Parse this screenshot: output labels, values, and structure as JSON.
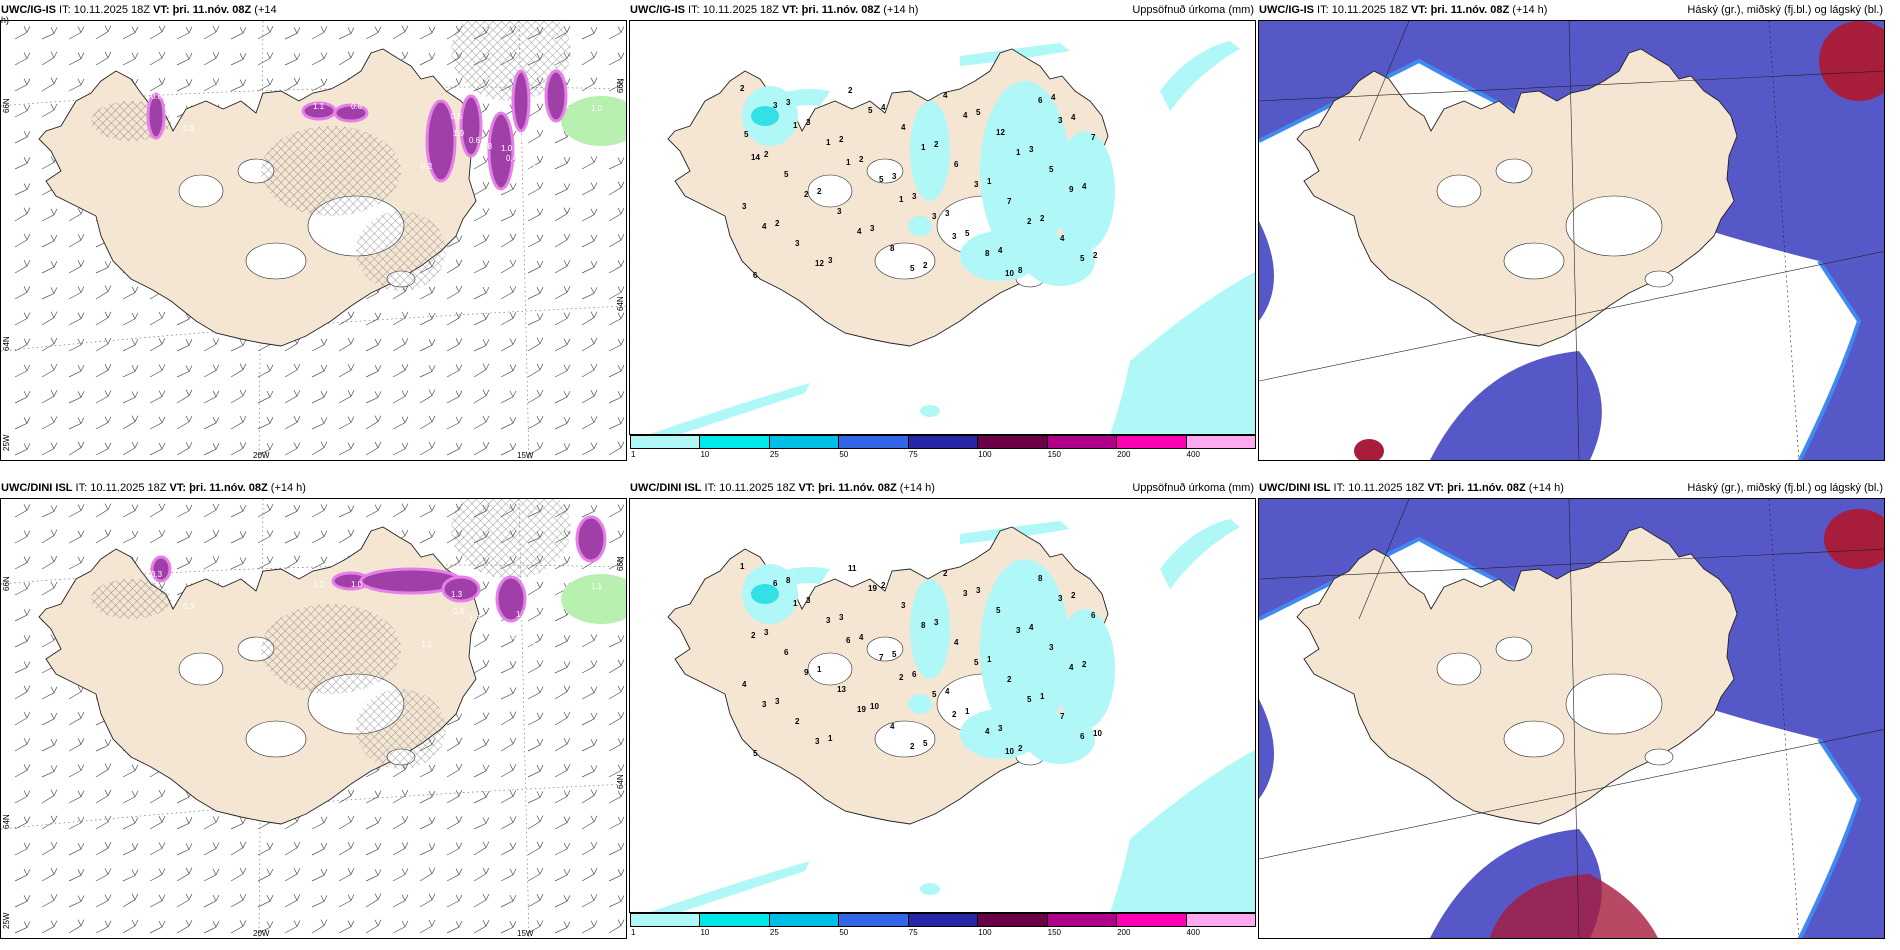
{
  "rows": [
    {
      "model": "UWC/IG-IS",
      "wind": {
        "model": "UWC/IG-IS",
        "it": " IT: 10.11.2025 18Z ",
        "vt": "VT: þri. 11.nóv. 08Z",
        "lead": " (+14",
        "lead2": "h)"
      },
      "precip": {
        "model": "UWC/IG-IS",
        "it": " IT: 10.11.2025 18Z ",
        "vt": "VT: þri. 11.nóv. 08Z",
        "lead": " (+14 h)",
        "right": "Uppsöfnuð úrkoma (mm)"
      },
      "cloud": {
        "model": "UWC/IG-IS",
        "it": " IT: 10.11.2025 18Z ",
        "vt": "VT: þri. 11.nóv. 08Z",
        "lead": " (+14 h)",
        "right": "Háský (gr.), miðský (fj.bl.) og lágský (bl.)"
      },
      "precip_values": [
        "2",
        "1",
        "1",
        "1",
        "3",
        "10",
        "3",
        "14",
        "2",
        "4",
        "5",
        "4",
        "1",
        "9",
        "4",
        "12",
        "5",
        "1",
        "3",
        "2",
        "5",
        "3",
        "1",
        "5",
        "3",
        "8",
        "6",
        "7",
        "5",
        "3",
        "8",
        "4",
        "12",
        "5",
        "3",
        "3",
        "2",
        "4",
        "6",
        "7",
        "4",
        "6",
        "3",
        "2",
        "3",
        "5",
        "8",
        "4",
        "2",
        "2",
        "3",
        "2",
        "5",
        "3",
        "4",
        "2",
        "3",
        "4",
        "2",
        "1",
        "2",
        "2",
        "3",
        "2",
        "3",
        "3",
        "4",
        "4",
        "5"
      ],
      "wind_labels": [
        "0.8",
        "0.8",
        "1.1",
        "0.6",
        "0.5",
        "1.9",
        "0.6",
        "0.8",
        "1.0",
        "0.6",
        "0.2",
        "0.4",
        "0.3",
        "0.5",
        "1.0"
      ]
    },
    {
      "model": "UWC/DINI ISL",
      "wind": {
        "model": "UWC/DINI ISL",
        "it": " IT: 10.11.2025 18Z ",
        "vt": "VT: þri. 11.nóv. 08Z",
        "lead": " (+14 h)",
        "lead2": ""
      },
      "precip": {
        "model": "UWC/DINI ISL",
        "it": " IT: 10.11.2025 18Z ",
        "vt": "VT: þri. 11.nóv. 08Z",
        "lead": " (+14 h)",
        "right": "Uppsöfnuð úrkoma (mm)"
      },
      "cloud": {
        "model": "UWC/DINI ISL",
        "it": " IT: 10.11.2025 18Z ",
        "vt": "VT: þri. 11.nóv. 08Z",
        "lead": " (+14 h)",
        "right": "Háský (gr.), miðský (fj.bl.) og lágský (bl.)"
      },
      "precip_values": [
        "1",
        "1",
        "6",
        "2",
        "2",
        "10",
        "3",
        "2",
        "9",
        "19",
        "2",
        "3",
        "3",
        "4",
        "3",
        "3",
        "19",
        "8",
        "5",
        "5",
        "6",
        "6",
        "3",
        "7",
        "5",
        "4",
        "8",
        "6",
        "6",
        "13",
        "4",
        "2",
        "5",
        "3",
        "4",
        "2",
        "11",
        "3",
        "4",
        "2",
        "7",
        "5",
        "3",
        "4",
        "6",
        "1",
        "2",
        "2",
        "3",
        "1",
        "10",
        "5",
        "3",
        "4",
        "2",
        "3",
        "1",
        "2",
        "3",
        "1",
        "1",
        "10",
        "8",
        "3",
        "5",
        "4",
        "3"
      ],
      "wind_labels": [
        "0.3",
        "0.3",
        "1.2",
        "1.0",
        "1.3",
        "0.8",
        "1.6",
        "1.7",
        "1.0",
        "1.2",
        "1.1",
        "0.5",
        "0.2",
        "1.1",
        "1.1"
      ]
    }
  ],
  "grid_labels": {
    "lat66": "66N",
    "lat64": "64N",
    "lon20": "20W",
    "lon15": "15W",
    "lon25": "25W"
  },
  "colorbar": {
    "ticks": [
      "1",
      "10",
      "25",
      "50",
      "75",
      "100",
      "150",
      "200",
      "400"
    ],
    "colors": [
      "#b0f7f7",
      "#00e8e8",
      "#00bfe6",
      "#3366e6",
      "#2626a6",
      "#6b0046",
      "#b0008a",
      "#ff00b4",
      "#ffaaf0"
    ]
  },
  "colors": {
    "land": "#f5e6d3",
    "precip_light": "#b0f7f7",
    "precip_mid": "#33e0e6",
    "cloud_low": "#5658c8",
    "cloud_mid_edge": "#3f89f0",
    "cloud_high": "#a81c3c",
    "wind_precip": "#a13fa8",
    "wind_precip_light": "#e580e8",
    "green": "#b8f0b0",
    "barb": "#555555"
  }
}
